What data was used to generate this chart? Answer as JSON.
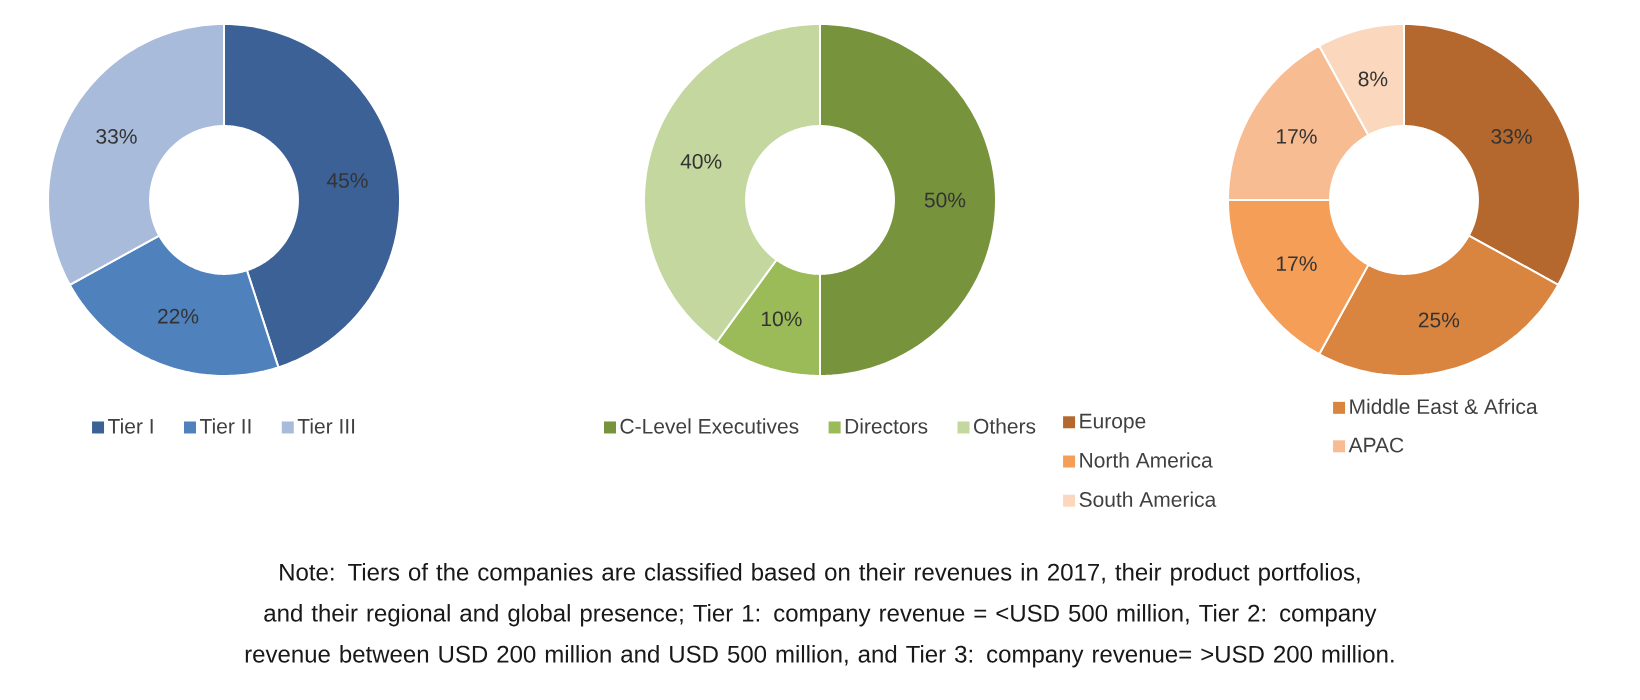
{
  "chart_data": [
    {
      "type": "donut",
      "categories": [
        "Tier I",
        "Tier II",
        "Tier III"
      ],
      "values": [
        45,
        22,
        33
      ],
      "value_labels": [
        "45%",
        "22%",
        "33%"
      ],
      "colors": [
        "#3c6196",
        "#4f81bd",
        "#a8bbdb"
      ],
      "legend": "bottom"
    },
    {
      "type": "donut",
      "categories": [
        "C-Level Executives",
        "Directors",
        "Others"
      ],
      "values": [
        50,
        10,
        40
      ],
      "value_labels": [
        "50%",
        "10%",
        "40%"
      ],
      "colors": [
        "#77933c",
        "#9bbb59",
        "#c4d79e"
      ],
      "legend": "bottom"
    },
    {
      "type": "donut",
      "categories": [
        "Europe",
        "Middle East & Africa",
        "North America",
        "APAC",
        "South America"
      ],
      "values": [
        33,
        25,
        17,
        17,
        8
      ],
      "value_labels": [
        "33%",
        "25%",
        "17%",
        "17%",
        "8%"
      ],
      "colors": [
        "#b4682e",
        "#d9843f",
        "#f59e58",
        "#f8bc92",
        "#fbd8bd"
      ],
      "legend": "bottom"
    },
    {
      "type": "other",
      "annotations": [
        "Note: Tiers of the companies are classified based on their revenues in 2017, their product portfolios, and their regional and global presence; Tier 1: company revenue = <USD 500 million, Tier 2: company revenue between USD 200 million and USD 500 million, and Tier 3: company revenue= >USD 200 million."
      ]
    }
  ]
}
